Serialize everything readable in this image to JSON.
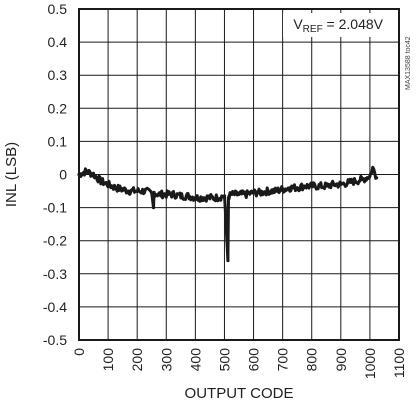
{
  "chart_data": {
    "type": "line",
    "xlabel": "OUTPUT CODE",
    "ylabel": "INL (LSB)",
    "xlim": [
      0,
      1100
    ],
    "ylim": [
      -0.5,
      0.5
    ],
    "xticks": [
      0,
      100,
      200,
      300,
      400,
      500,
      600,
      700,
      800,
      900,
      1000,
      1100
    ],
    "xtick_labels": [
      "0",
      "100",
      "200",
      "300",
      "400",
      "500",
      "600",
      "700",
      "800",
      "900",
      "1000",
      "1100"
    ],
    "yticks": [
      0.5,
      0.4,
      0.3,
      0.2,
      0.1,
      0,
      -0.1,
      -0.2,
      -0.3,
      -0.4,
      -0.5
    ],
    "ytick_labels": [
      "0.5",
      "0.4",
      "0.3",
      "0.2",
      "0.1",
      "0",
      "-0.1",
      "-0.2",
      "-0.3",
      "-0.4",
      "-0.5"
    ],
    "grid": true,
    "annotation": {
      "prefix": "V",
      "subscript": "REF",
      "suffix": " = 2.048V"
    },
    "side_id": "MAX13588 toc42",
    "series": [
      {
        "color": "#1a1a1a",
        "x": [
          0,
          25,
          50,
          75,
          100,
          125,
          150,
          175,
          200,
          225,
          250,
          256,
          258,
          275,
          300,
          325,
          350,
          375,
          400,
          425,
          450,
          475,
          500,
          512,
          514,
          516,
          525,
          550,
          575,
          600,
          625,
          650,
          675,
          700,
          725,
          750,
          775,
          800,
          825,
          850,
          875,
          900,
          925,
          950,
          975,
          1000,
          1010,
          1023
        ],
        "y": [
          0.0,
          0.01,
          0.0,
          -0.02,
          -0.03,
          -0.04,
          -0.045,
          -0.05,
          -0.05,
          -0.05,
          -0.055,
          -0.1,
          -0.055,
          -0.06,
          -0.06,
          -0.06,
          -0.065,
          -0.065,
          -0.07,
          -0.07,
          -0.07,
          -0.07,
          -0.065,
          -0.26,
          -0.07,
          -0.065,
          -0.06,
          -0.06,
          -0.06,
          -0.055,
          -0.055,
          -0.05,
          -0.05,
          -0.045,
          -0.04,
          -0.04,
          -0.035,
          -0.035,
          -0.035,
          -0.035,
          -0.03,
          -0.03,
          -0.025,
          -0.02,
          -0.015,
          -0.005,
          0.02,
          -0.01
        ]
      }
    ]
  }
}
